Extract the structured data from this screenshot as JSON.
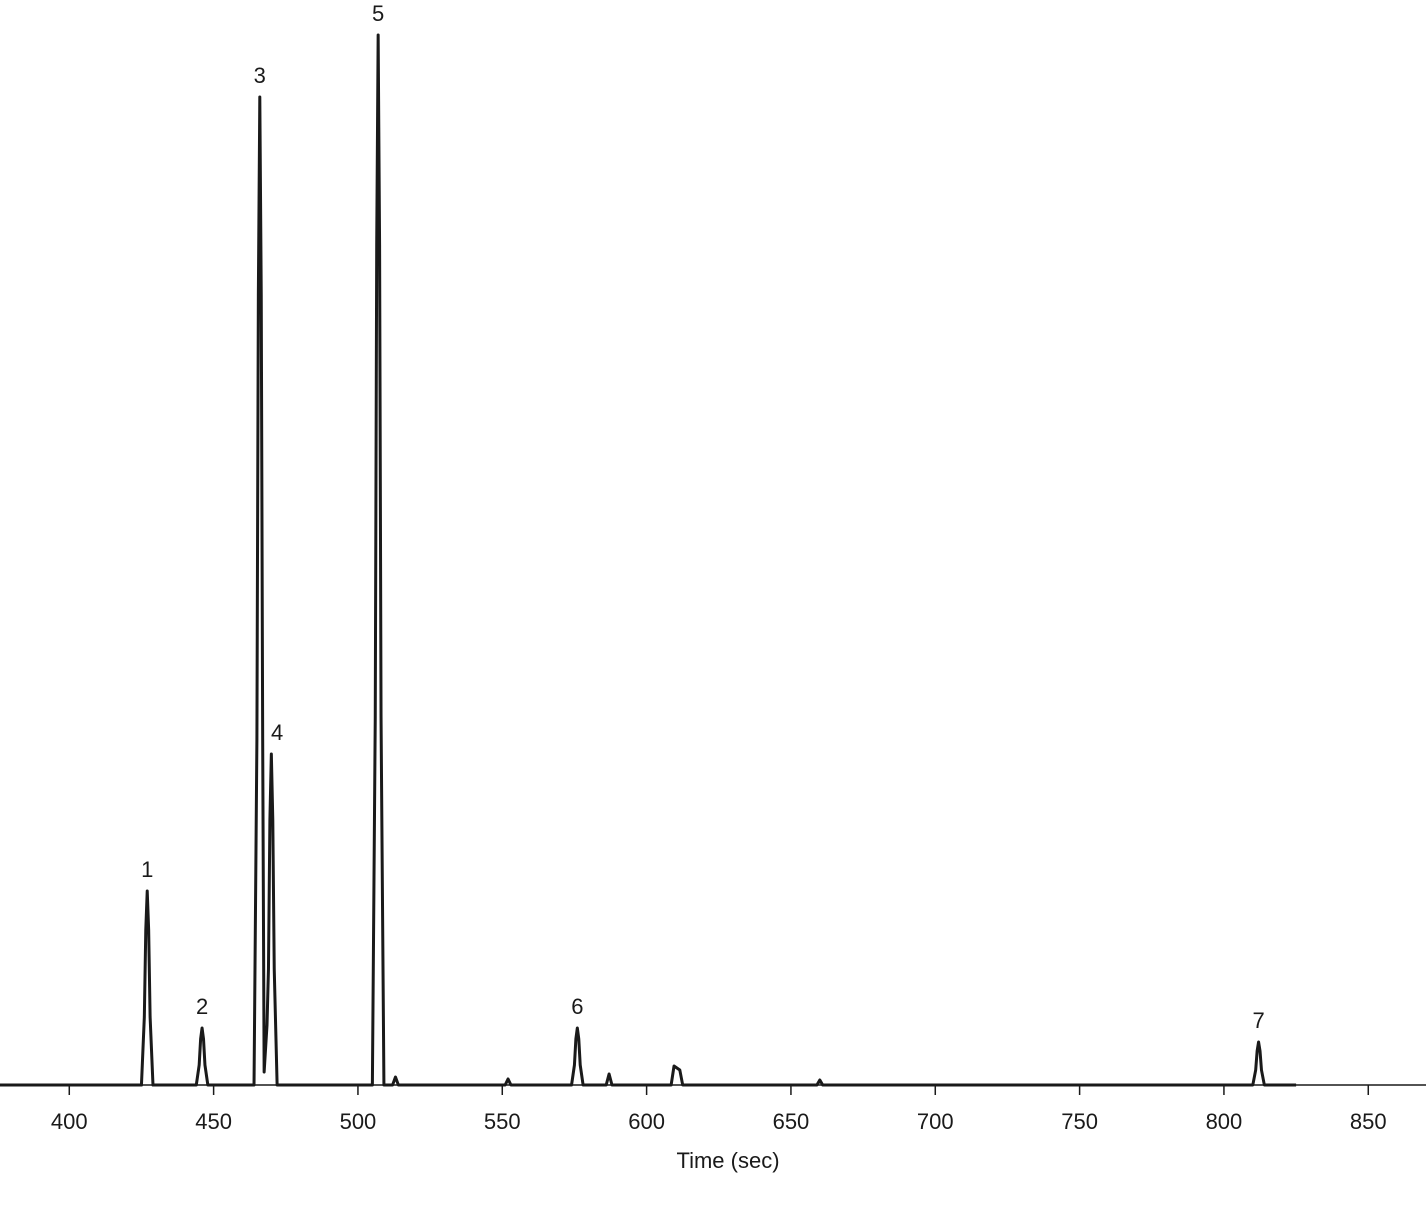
{
  "chart_data": {
    "type": "line",
    "xlabel": "Time (sec)",
    "color": "#1a1a1a",
    "xlim": [
      376,
      870
    ],
    "xticks": [
      400,
      450,
      500,
      550,
      600,
      650,
      700,
      750,
      800,
      850
    ],
    "ylim": [
      0,
      1050
    ],
    "x": [
      376,
      420,
      425,
      426,
      426.5,
      427,
      427.5,
      428,
      429,
      444,
      445,
      445.5,
      446,
      446.5,
      447,
      448,
      464,
      465,
      465.5,
      466,
      466.5,
      467,
      467.5,
      468.5,
      469,
      469.5,
      470,
      470.5,
      471,
      472,
      505,
      506,
      506.5,
      507,
      507.5,
      508,
      509,
      512,
      513,
      514,
      551,
      552,
      553,
      574,
      575,
      575.5,
      576,
      576.5,
      577,
      578,
      586,
      587,
      588,
      608.5,
      609.5,
      610.5,
      611.5,
      612.5,
      659,
      660,
      661,
      810,
      811,
      811.5,
      812,
      812.5,
      813,
      814,
      825
    ],
    "values": [
      0,
      0,
      0,
      68,
      155,
      194,
      155,
      68,
      0,
      0,
      20,
      46,
      57,
      46,
      20,
      0,
      0,
      346,
      790,
      988,
      790,
      346,
      13,
      60,
      116,
      265,
      331,
      265,
      116,
      0,
      0,
      368,
      840,
      1050,
      840,
      368,
      0,
      0,
      8,
      0,
      0,
      6,
      0,
      0,
      20,
      46,
      57,
      46,
      20,
      0,
      0,
      11,
      0,
      0,
      19,
      17,
      15,
      0,
      0,
      5,
      0,
      0,
      15,
      34,
      43,
      34,
      15,
      0,
      0
    ],
    "annotations": [
      {
        "text": "1",
        "x": 427,
        "y": 194
      },
      {
        "text": "2",
        "x": 446,
        "y": 57
      },
      {
        "text": "3",
        "x": 466,
        "y": 988
      },
      {
        "text": "4",
        "x": 472,
        "y": 331
      },
      {
        "text": "5",
        "x": 507,
        "y": 1050
      },
      {
        "text": "6",
        "x": 576,
        "y": 57
      },
      {
        "text": "7",
        "x": 812,
        "y": 43
      }
    ]
  }
}
